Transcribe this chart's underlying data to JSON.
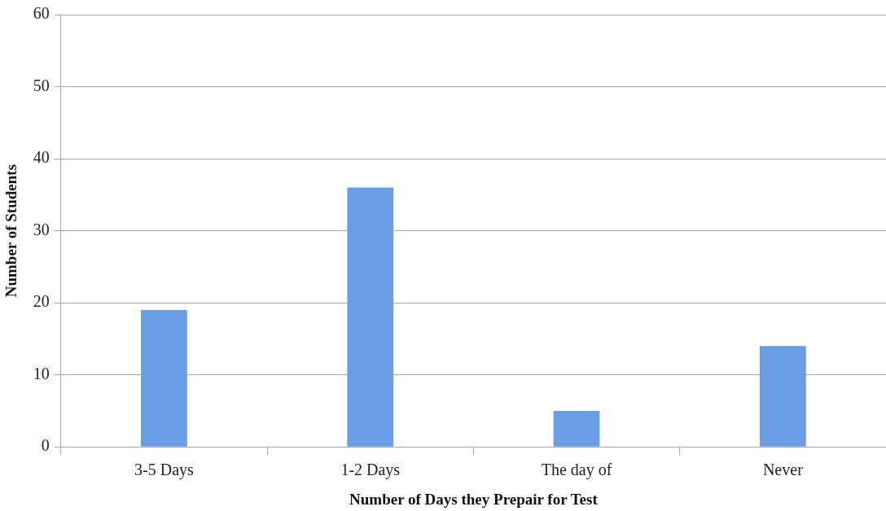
{
  "chart_data": {
    "type": "bar",
    "xlabel": "Number of Days they Prepair for Test",
    "ylabel": "Number of Students",
    "categories": [
      "3-5 Days",
      "1-2 Days",
      "The day of",
      "Never"
    ],
    "values": [
      19,
      36,
      5,
      14
    ],
    "color": "#699de6",
    "ylim": [
      0,
      60
    ],
    "yticks": [
      0,
      10,
      20,
      30,
      40,
      50,
      60
    ],
    "grid": "y"
  }
}
